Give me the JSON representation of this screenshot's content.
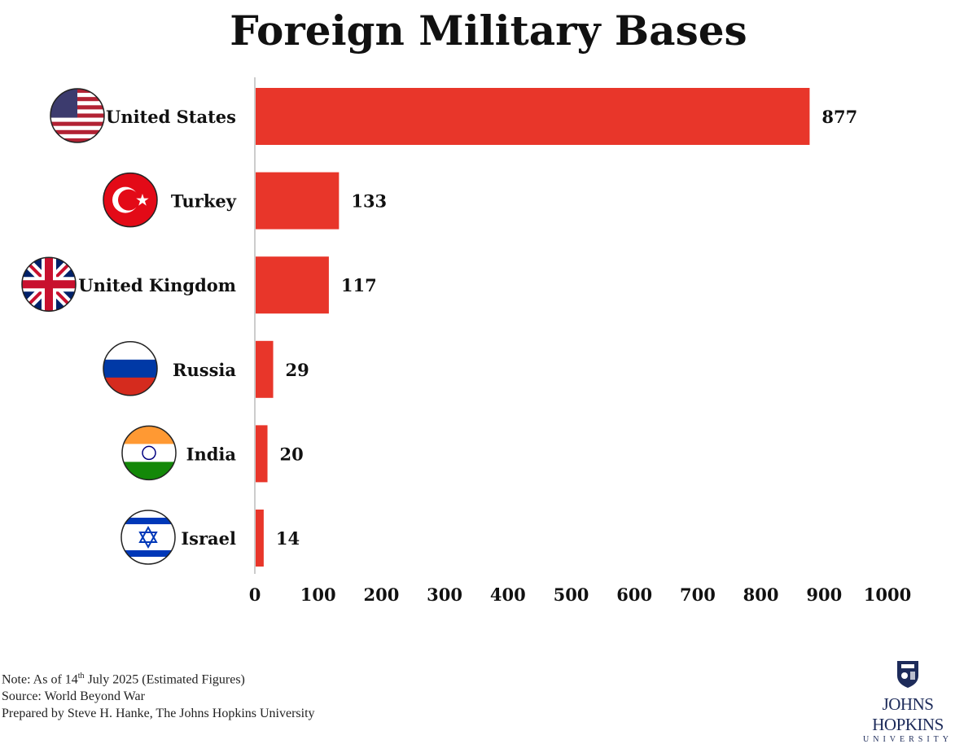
{
  "chart_data": {
    "type": "bar",
    "orientation": "horizontal",
    "title": "Foreign Military Bases",
    "categories": [
      "United States",
      "Turkey",
      "United Kingdom",
      "Russia",
      "India",
      "Israel"
    ],
    "values": [
      877,
      133,
      117,
      29,
      20,
      14
    ],
    "xlim": [
      0,
      1000
    ],
    "xticks": [
      0,
      100,
      200,
      300,
      400,
      500,
      600,
      700,
      800,
      900,
      1000
    ],
    "grid": false,
    "bar_color": "#e8362a",
    "data_labels": true,
    "flag_icons": [
      "us-flag-icon",
      "turkey-flag-icon",
      "uk-flag-icon",
      "russia-flag-icon",
      "india-flag-icon",
      "israel-flag-icon"
    ]
  },
  "footer": {
    "note_prefix": "Note: As of 14",
    "note_sup": "th",
    "note_suffix": " July 2025 (Estimated Figures)",
    "source": "Source: World Beyond War",
    "prepared": "Prepared by Steve H. Hanke, The Johns Hopkins University"
  },
  "logo": {
    "name": "JOHNS HOPKINS",
    "sub": "UNIVERSITY"
  }
}
